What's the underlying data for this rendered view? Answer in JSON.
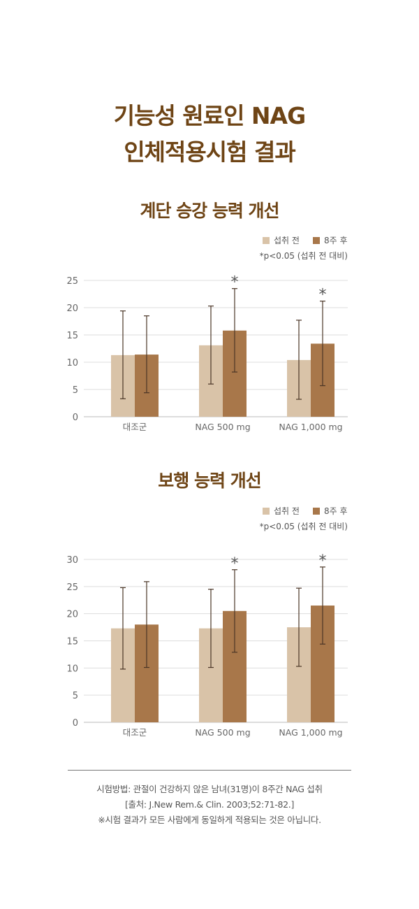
{
  "title_line1": "기능성 원료인 NAG",
  "title_line2": "인체적용시험 결과",
  "colors": {
    "title": "#6e4415",
    "before": "#d9c3a8",
    "after": "#a8774a",
    "error_bar": "#4a3526",
    "grid": "#dddddd"
  },
  "chart_data": [
    {
      "type": "bar",
      "title": "계단 승강 능력 개선",
      "categories": [
        "대조군",
        "NAG 500 mg",
        "NAG 1,000 mg"
      ],
      "series": [
        {
          "name": "섭취 전",
          "values": [
            11.3,
            13.1,
            10.4
          ],
          "error_low": [
            3.3,
            6.0,
            3.2
          ],
          "error_high": [
            19.4,
            20.3,
            17.7
          ]
        },
        {
          "name": "8주 후",
          "values": [
            11.4,
            15.8,
            13.4
          ],
          "error_low": [
            4.4,
            8.2,
            5.7
          ],
          "error_high": [
            18.5,
            23.5,
            21.2
          ]
        }
      ],
      "significance_marks": [
        "",
        "*",
        "*"
      ],
      "note": "*p<0.05 (섭취 전 대비)",
      "ylim": [
        0,
        25
      ],
      "yticks": [
        "0",
        "5",
        "10",
        "15",
        "20",
        "25"
      ],
      "grid": true,
      "legend": "top-right"
    },
    {
      "type": "bar",
      "title": "보행 능력 개선",
      "categories": [
        "대조군",
        "NAG 500 mg",
        "NAG 1,000 mg"
      ],
      "series": [
        {
          "name": "섭취 전",
          "values": [
            17.3,
            17.3,
            17.5
          ],
          "error_low": [
            9.8,
            10.1,
            10.3
          ],
          "error_high": [
            24.8,
            24.5,
            24.7
          ]
        },
        {
          "name": "8주 후",
          "values": [
            18.0,
            20.5,
            21.5
          ],
          "error_low": [
            10.1,
            12.9,
            14.4
          ],
          "error_high": [
            25.9,
            28.1,
            28.6
          ]
        }
      ],
      "significance_marks": [
        "",
        "*",
        "*"
      ],
      "note": "*p<0.05 (섭취 전 대비)",
      "ylim": [
        0,
        30
      ],
      "yticks": [
        "0",
        "5",
        "10",
        "15",
        "20",
        "25",
        "30"
      ],
      "grid": true,
      "legend": "top-right"
    }
  ],
  "footer": {
    "method": "시험방법: 관절이 건강하지 않은 남녀(31명)이 8주간 NAG 섭취",
    "source": "[출처: J.New Rem.& Clin. 2003;52:71-82.]",
    "disclaimer": "※시험 결과가 모든 사람에게 동일하게 적용되는 것은 아닙니다."
  }
}
